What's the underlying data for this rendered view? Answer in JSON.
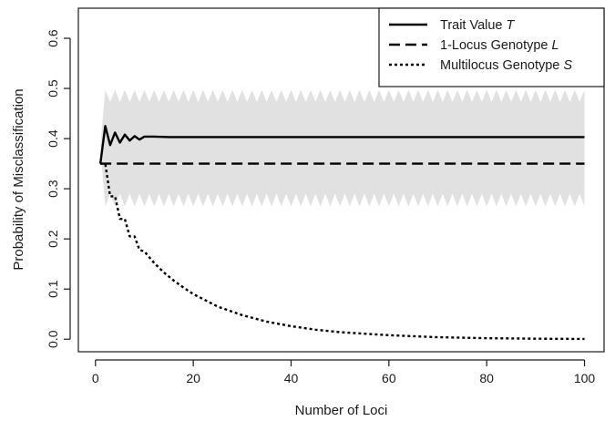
{
  "chart_data": {
    "type": "line",
    "xlabel": "Number of Loci",
    "ylabel": "Probability of Misclassification",
    "xlim": [
      -3.5,
      104
    ],
    "ylim": [
      -0.025,
      0.66
    ],
    "x_ticks": [
      0,
      20,
      40,
      60,
      80,
      100
    ],
    "y_ticks": [
      0.0,
      0.1,
      0.2,
      0.3,
      0.4,
      0.5,
      0.6
    ],
    "grid": false,
    "legend": {
      "position": "top-right",
      "entries": [
        {
          "label": "Trait Value ",
          "symbol": "T",
          "linestyle": "solid"
        },
        {
          "label": "1-Locus Genotype ",
          "symbol": "L",
          "linestyle": "dashed"
        },
        {
          "label": "Multilocus Genotype ",
          "symbol": "S",
          "linestyle": "dotted"
        }
      ]
    },
    "band": {
      "color": "#e1e1e1",
      "center": 0.385,
      "n_start": 1,
      "n_end": 100,
      "upper_even": 0.497,
      "upper_odd": 0.473,
      "lower_even": 0.265,
      "lower_odd": 0.29
    },
    "series": [
      {
        "name": "Trait Value T",
        "style": "solid",
        "x": [
          1,
          2,
          3,
          4,
          5,
          6,
          7,
          8,
          9,
          10,
          12,
          15,
          20,
          30,
          50,
          100
        ],
        "y": [
          0.35,
          0.425,
          0.387,
          0.412,
          0.392,
          0.408,
          0.396,
          0.405,
          0.398,
          0.404,
          0.404,
          0.403,
          0.403,
          0.403,
          0.403,
          0.403
        ]
      },
      {
        "name": "1-Locus Genotype L",
        "style": "dashed",
        "x": [
          1,
          100
        ],
        "y": [
          0.35,
          0.35
        ]
      },
      {
        "name": "Multilocus Genotype S",
        "style": "dotted",
        "x": [
          1,
          2,
          3,
          4,
          5,
          6,
          7,
          8,
          9,
          10,
          12,
          14,
          16,
          18,
          20,
          25,
          30,
          35,
          40,
          45,
          50,
          60,
          70,
          80,
          90,
          100
        ],
        "y": [
          0.35,
          0.35,
          0.285,
          0.285,
          0.24,
          0.24,
          0.205,
          0.205,
          0.178,
          0.175,
          0.152,
          0.133,
          0.117,
          0.103,
          0.09,
          0.065,
          0.048,
          0.035,
          0.026,
          0.019,
          0.014,
          0.008,
          0.004,
          0.002,
          0.001,
          0.0005
        ]
      }
    ]
  }
}
